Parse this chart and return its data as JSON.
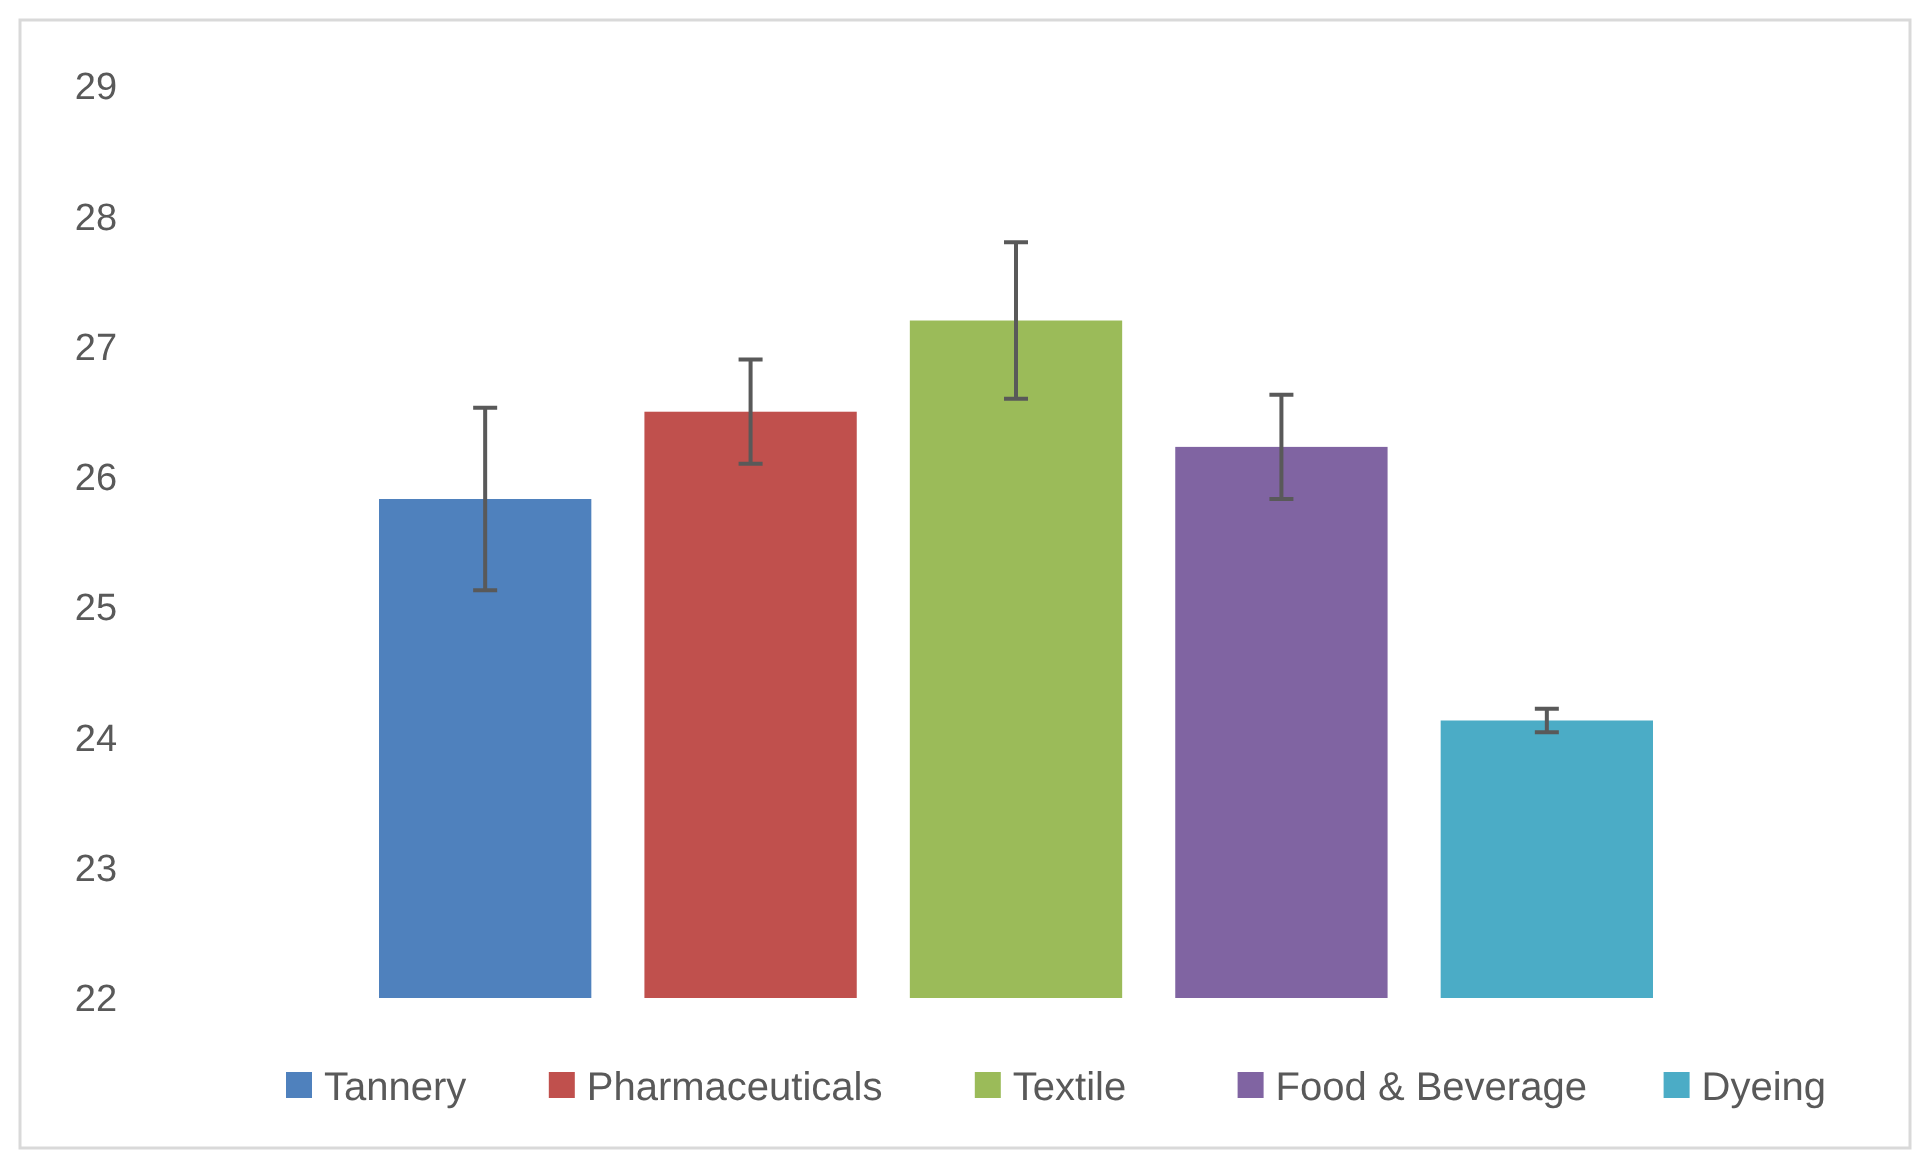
{
  "chart_data": {
    "type": "bar",
    "categories": [
      null
    ],
    "series": [
      {
        "name": "Tannery",
        "color": "#4f81bd",
        "values": [
          25.83
        ],
        "errors": [
          0.7
        ]
      },
      {
        "name": "Pharmaceuticals",
        "color": "#c0504d",
        "values": [
          26.5
        ],
        "errors": [
          0.4
        ]
      },
      {
        "name": "Textile",
        "color": "#9bbb59",
        "values": [
          27.2
        ],
        "errors": [
          0.6
        ]
      },
      {
        "name": "Food & Beverage",
        "color": "#8064a2",
        "values": [
          26.23
        ],
        "errors": [
          0.4
        ]
      },
      {
        "name": "Dyeing",
        "color": "#4bacc6",
        "values": [
          24.13
        ],
        "errors": [
          0.09
        ]
      }
    ],
    "ylim": [
      22,
      29
    ],
    "yticks": [
      22,
      23,
      24,
      25,
      26,
      27,
      28,
      29
    ],
    "grid": false,
    "legend": "bottom"
  }
}
